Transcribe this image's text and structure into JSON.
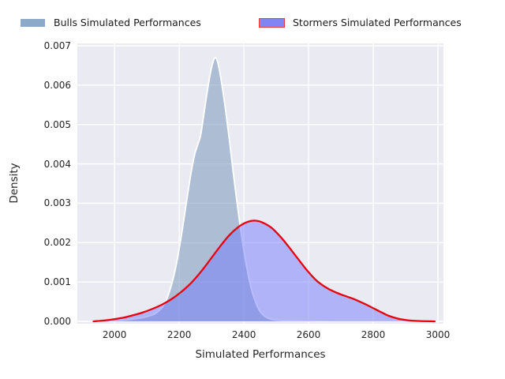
{
  "figure": {
    "background": "#ffffff",
    "plot_background": "#eaeaf2",
    "grid_color": "#ffffff",
    "text_color": "#262626"
  },
  "legend": {
    "entries": [
      {
        "label": "Bulls Simulated Performances",
        "swatch_fill": "#8ca9c9",
        "swatch_border": "#ffffff"
      },
      {
        "label": "Stormers Simulated Performances",
        "swatch_fill": "#8184f3",
        "swatch_border": "#ee3a3a"
      }
    ]
  },
  "chart_data": {
    "type": "area",
    "subtype": "kde-density",
    "title": "",
    "xlabel": "Simulated Performances",
    "ylabel": "Density",
    "xlim": [
      1885,
      3017
    ],
    "ylim": [
      0,
      0.007
    ],
    "xticks": [
      2000,
      2200,
      2400,
      2600,
      2800,
      3000
    ],
    "yticks": [
      0,
      0.001,
      0.002,
      0.003,
      0.004,
      0.005,
      0.006,
      0.007
    ],
    "ytick_labels": [
      "0.000",
      "0.001",
      "0.002",
      "0.003",
      "0.004",
      "0.005",
      "0.006",
      "0.007"
    ],
    "grid": true,
    "legend_position": "top-outside",
    "series": [
      {
        "name": "Bulls Simulated Performances",
        "fill_color": "rgba(109,144,182,0.5)",
        "line_color": "#ffffff",
        "line_width": 1.9,
        "peak": [
          2312,
          0.0067
        ],
        "points": [
          [
            1950,
            0.0
          ],
          [
            2000,
            2e-05
          ],
          [
            2050,
            5e-05
          ],
          [
            2100,
            0.00012
          ],
          [
            2130,
            0.00022
          ],
          [
            2155,
            0.00045
          ],
          [
            2175,
            0.0009
          ],
          [
            2190,
            0.0014
          ],
          [
            2205,
            0.0021
          ],
          [
            2220,
            0.0029
          ],
          [
            2235,
            0.0037
          ],
          [
            2248,
            0.00425
          ],
          [
            2258,
            0.0045
          ],
          [
            2266,
            0.00472
          ],
          [
            2275,
            0.0052
          ],
          [
            2285,
            0.00575
          ],
          [
            2295,
            0.00625
          ],
          [
            2305,
            0.0066
          ],
          [
            2312,
            0.0067
          ],
          [
            2320,
            0.00655
          ],
          [
            2330,
            0.00612
          ],
          [
            2342,
            0.00545
          ],
          [
            2355,
            0.00462
          ],
          [
            2368,
            0.00372
          ],
          [
            2382,
            0.00282
          ],
          [
            2396,
            0.002
          ],
          [
            2410,
            0.00132
          ],
          [
            2424,
            0.0008
          ],
          [
            2438,
            0.00045
          ],
          [
            2452,
            0.00023
          ],
          [
            2468,
            0.00011
          ],
          [
            2485,
            5e-05
          ],
          [
            2520,
            2e-05
          ],
          [
            2580,
            1e-05
          ],
          [
            2660,
            0.0
          ]
        ]
      },
      {
        "name": "Stormers Simulated Performances",
        "fill_color": "rgba(118,124,252,0.5)",
        "line_color": "#e8000b",
        "line_width": 2.3,
        "peak": [
          2435,
          0.00256
        ],
        "points": [
          [
            1935,
            0.0
          ],
          [
            1965,
            2e-05
          ],
          [
            1995,
            5e-05
          ],
          [
            2025,
            9e-05
          ],
          [
            2055,
            0.00015
          ],
          [
            2085,
            0.00022
          ],
          [
            2115,
            0.00031
          ],
          [
            2145,
            0.00042
          ],
          [
            2175,
            0.00056
          ],
          [
            2205,
            0.00074
          ],
          [
            2235,
            0.00096
          ],
          [
            2265,
            0.00124
          ],
          [
            2295,
            0.00156
          ],
          [
            2325,
            0.00189
          ],
          [
            2355,
            0.00219
          ],
          [
            2385,
            0.00241
          ],
          [
            2412,
            0.00253
          ],
          [
            2435,
            0.00256
          ],
          [
            2458,
            0.00251
          ],
          [
            2485,
            0.00238
          ],
          [
            2512,
            0.00216
          ],
          [
            2540,
            0.00188
          ],
          [
            2568,
            0.00158
          ],
          [
            2596,
            0.00129
          ],
          [
            2624,
            0.00104
          ],
          [
            2652,
            0.00087
          ],
          [
            2680,
            0.00075
          ],
          [
            2708,
            0.00066
          ],
          [
            2736,
            0.00058
          ],
          [
            2764,
            0.00048
          ],
          [
            2792,
            0.00037
          ],
          [
            2820,
            0.00025
          ],
          [
            2848,
            0.00014
          ],
          [
            2876,
            7e-05
          ],
          [
            2904,
            3e-05
          ],
          [
            2940,
            1e-05
          ],
          [
            2990,
            0.0
          ]
        ]
      }
    ]
  }
}
